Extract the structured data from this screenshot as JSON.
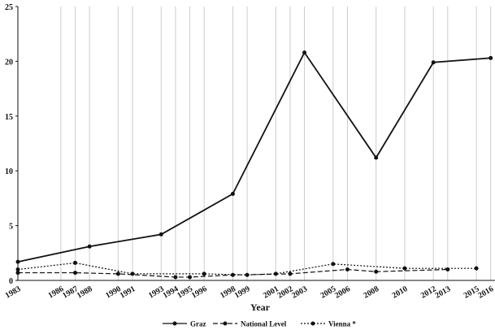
{
  "chart_data": {
    "type": "line",
    "x_label": "Year",
    "xlim": [
      1983,
      2016.3
    ],
    "ylim": [
      0,
      25
    ],
    "xticks": [
      1983,
      1986,
      1987,
      1988,
      1990,
      1991,
      1993,
      1994,
      1995,
      1996,
      1998,
      1999,
      2001,
      2002,
      2003,
      2005,
      2006,
      2008,
      2010,
      2012,
      2013,
      2015,
      2016
    ],
    "yticks": [
      0,
      5,
      10,
      15,
      20,
      25
    ],
    "grid": true,
    "series": [
      {
        "name": "Graz",
        "color": "#111111",
        "dash": "solid",
        "x": [
          1983,
          1988,
          1993,
          1998,
          2003,
          2008,
          2012,
          2016
        ],
        "values": [
          1.7,
          3.1,
          4.2,
          7.9,
          20.8,
          11.2,
          19.9,
          20.3
        ]
      },
      {
        "name": "National Level",
        "color": "#111111",
        "dash": "dashed",
        "x": [
          1983,
          1987,
          1990,
          1994,
          1995,
          1998,
          2002,
          2006,
          2008,
          2013
        ],
        "values": [
          0.7,
          0.7,
          0.6,
          0.3,
          0.3,
          0.5,
          0.6,
          1.0,
          0.8,
          1.0
        ]
      },
      {
        "name": "Vienna *",
        "color": "#111111",
        "dash": "dotted",
        "x": [
          1983,
          1987,
          1991,
          1996,
          1999,
          2001,
          2005,
          2010,
          2015
        ],
        "values": [
          1.0,
          1.6,
          0.6,
          0.6,
          0.5,
          0.6,
          1.5,
          1.1,
          1.1
        ]
      }
    ]
  }
}
